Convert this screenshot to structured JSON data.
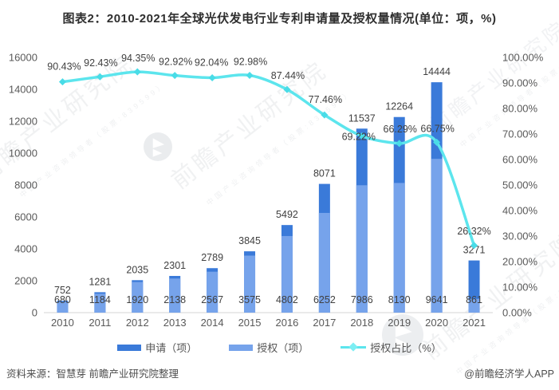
{
  "title": "图表2：2010-2021年全球光伏发电行业专利申请量及授权量情况(单位：项，%)",
  "chart_data": {
    "type": "bar",
    "subtype": "overlapped-bars-with-line",
    "categories": [
      "2010",
      "2011",
      "2012",
      "2013",
      "2014",
      "2015",
      "2016",
      "2017",
      "2018",
      "2019",
      "2020",
      "2021"
    ],
    "series": [
      {
        "name": "申请（项）",
        "type": "bar",
        "color": "#3a7ad9",
        "axis": "left",
        "values": [
          752,
          1281,
          2035,
          2301,
          2789,
          3845,
          5492,
          8071,
          11537,
          12264,
          14444,
          3271
        ]
      },
      {
        "name": "授权（项）",
        "type": "bar",
        "color": "#76a3eb",
        "axis": "left",
        "values": [
          680,
          1184,
          1920,
          2138,
          2567,
          3575,
          4802,
          6252,
          7986,
          8130,
          9641,
          861
        ]
      },
      {
        "name": "授权占比（%）",
        "type": "line",
        "color": "#5ce5ed",
        "axis": "right",
        "values": [
          90.43,
          92.43,
          94.35,
          92.92,
          92.04,
          92.98,
          87.44,
          77.46,
          69.22,
          66.29,
          66.75,
          26.32
        ]
      }
    ],
    "left_axis": {
      "min": 0,
      "max": 16000,
      "step": 2000
    },
    "right_axis": {
      "min": 0,
      "max": 100,
      "step": 10,
      "suffix": "%",
      "decimals": 2
    },
    "grid": false,
    "legend_position": "bottom"
  },
  "footer": {
    "source": "资料来源：智慧芽 前瞻产业研究院整理",
    "credit": "@前瞻经济学人APP"
  },
  "watermark": {
    "text": "前瞻产业研究院",
    "subtext": "中国产业咨询领导者（股票:839599）",
    "logo": "qianzhan-logo"
  }
}
